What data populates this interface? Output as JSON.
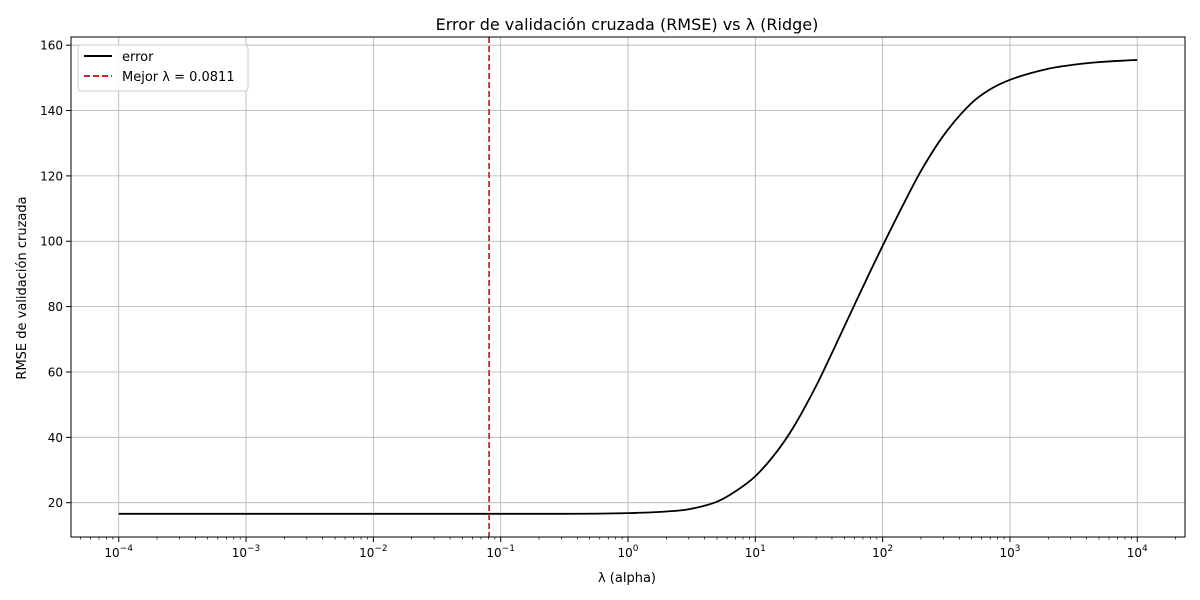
{
  "chart_data": {
    "type": "line",
    "title": "Error de validación cruzada (RMSE) vs λ (Ridge)",
    "xlabel": "λ (alpha)",
    "ylabel": "RMSE de validación cruzada",
    "x_scale": "log",
    "xlim": [
      4.22e-05,
      23700
    ],
    "ylim": [
      9.5,
      162.5
    ],
    "x_ticks": [
      {
        "value": 0.0001,
        "base": "10",
        "exp": "−4"
      },
      {
        "value": 0.001,
        "base": "10",
        "exp": "−3"
      },
      {
        "value": 0.01,
        "base": "10",
        "exp": "−2"
      },
      {
        "value": 0.1,
        "base": "10",
        "exp": "−1"
      },
      {
        "value": 1,
        "base": "10",
        "exp": "0"
      },
      {
        "value": 10,
        "base": "10",
        "exp": "1"
      },
      {
        "value": 100,
        "base": "10",
        "exp": "2"
      },
      {
        "value": 1000,
        "base": "10",
        "exp": "3"
      },
      {
        "value": 10000,
        "base": "10",
        "exp": "4"
      }
    ],
    "y_ticks": [
      20,
      40,
      60,
      80,
      100,
      120,
      140,
      160
    ],
    "grid": true,
    "legend_position": "top-left",
    "series": [
      {
        "name": "error",
        "color": "#000000",
        "style": "solid",
        "x": [
          0.0001,
          0.001,
          0.01,
          0.1,
          0.3,
          1,
          2,
          3,
          5,
          7,
          10,
          15,
          20,
          30,
          40,
          60,
          80,
          100,
          150,
          200,
          300,
          500,
          700,
          1000,
          2000,
          3000,
          5000,
          10000
        ],
        "y": [
          16.6,
          16.6,
          16.6,
          16.6,
          16.6,
          16.8,
          17.3,
          18.0,
          20.3,
          23.5,
          28.1,
          36.0,
          43.2,
          55.7,
          65.8,
          80.5,
          90.8,
          98.6,
          112.3,
          121.5,
          132.3,
          142.3,
          146.5,
          149.4,
          152.8,
          153.9,
          154.8,
          155.5
        ]
      },
      {
        "name": "Mejor λ = 0.0811",
        "color": "#d62728",
        "style": "dashed",
        "vline_x": 0.0811
      }
    ]
  }
}
